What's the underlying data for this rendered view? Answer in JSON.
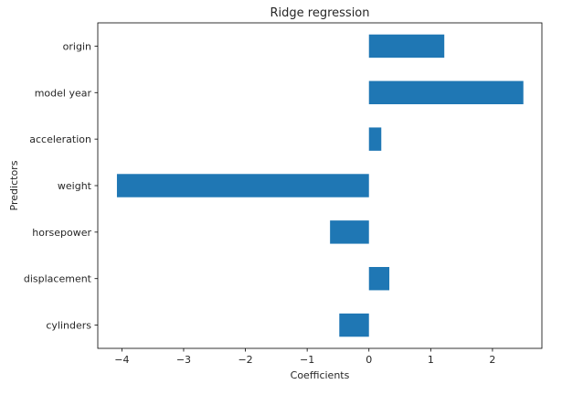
{
  "chart_data": {
    "type": "bar",
    "orientation": "horizontal",
    "title": "Ridge regression",
    "xlabel": "Coefficients",
    "ylabel": "Predictors",
    "categories": [
      "cylinders",
      "displacement",
      "horsepower",
      "weight",
      "acceleration",
      "model year",
      "origin"
    ],
    "values": [
      -0.48,
      0.33,
      -0.63,
      -4.08,
      0.2,
      2.5,
      1.22
    ],
    "xlim": [
      -4.39,
      2.8
    ],
    "xticks": [
      -4,
      -3,
      -2,
      -1,
      0,
      1,
      2
    ],
    "bar_color": "#1f77b4",
    "grid": false
  }
}
